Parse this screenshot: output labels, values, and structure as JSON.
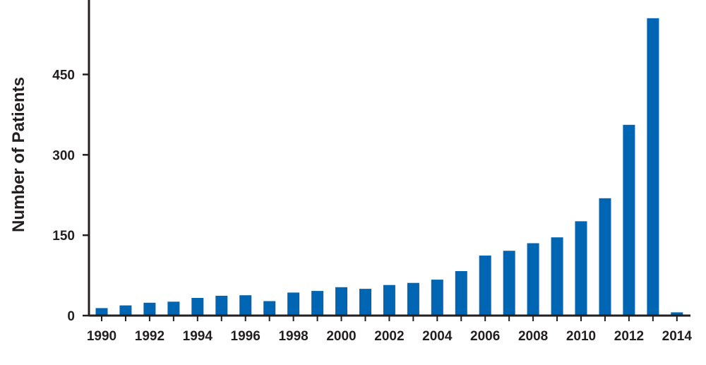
{
  "chart_data": {
    "type": "bar",
    "title": "",
    "xlabel": "",
    "ylabel": "Number of Patients",
    "categories": [
      "1990",
      "1991",
      "1992",
      "1993",
      "1994",
      "1995",
      "1996",
      "1997",
      "1998",
      "1999",
      "2000",
      "2001",
      "2002",
      "2003",
      "2004",
      "2005",
      "2006",
      "2007",
      "2008",
      "2009",
      "2010",
      "2011",
      "2012",
      "2013",
      "2014"
    ],
    "series": [
      {
        "values": [
          14,
          19,
          24,
          26,
          33,
          37,
          38,
          27,
          43,
          46,
          53,
          50,
          57,
          61,
          67,
          83,
          112,
          121,
          135,
          146,
          176,
          219,
          356,
          555,
          6
        ]
      }
    ],
    "x_tick_labels": [
      "1990",
      "1992",
      "1994",
      "1996",
      "1998",
      "2000",
      "2002",
      "2004",
      "2006",
      "2008",
      "2010",
      "2012",
      "2014"
    ],
    "y_tick_labels": [
      "0",
      "150",
      "300",
      "450"
    ],
    "y_ticks": [
      0,
      150,
      300,
      450
    ],
    "ylim": [
      0,
      585
    ],
    "grid": false,
    "legend": "none",
    "bar_color": "#0066b3",
    "axis_color": "#231f20"
  }
}
